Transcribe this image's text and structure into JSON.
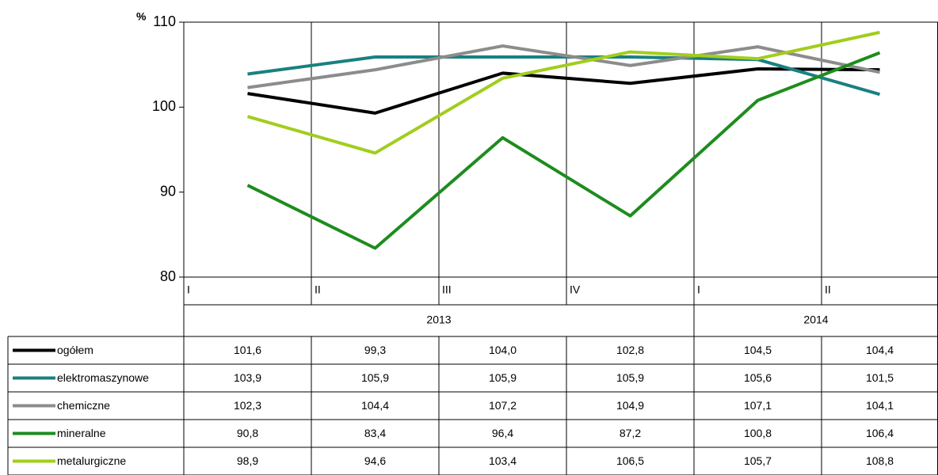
{
  "chart_data": {
    "type": "line",
    "y_axis_label": "%",
    "categories": [
      "I",
      "II",
      "III",
      "IV",
      "I",
      "II"
    ],
    "x_groups": [
      {
        "label": "2013",
        "count": 4
      },
      {
        "label": "2014",
        "count": 2
      }
    ],
    "ylim": [
      80,
      110
    ],
    "yticks": [
      80,
      90,
      100,
      110
    ],
    "series": [
      {
        "name": "ogółem",
        "color": "#000000",
        "values": [
          101.6,
          99.3,
          104.0,
          102.8,
          104.5,
          104.4
        ],
        "value_labels": [
          "101,6",
          "99,3",
          "104,0",
          "102,8",
          "104,5",
          "104,4"
        ]
      },
      {
        "name": "elektromaszynowe",
        "color": "#1a8080",
        "values": [
          103.9,
          105.9,
          105.9,
          105.9,
          105.6,
          101.5
        ],
        "value_labels": [
          "103,9",
          "105,9",
          "105,9",
          "105,9",
          "105,6",
          "101,5"
        ]
      },
      {
        "name": "chemiczne",
        "color": "#8c8c8c",
        "values": [
          102.3,
          104.4,
          107.2,
          104.9,
          107.1,
          104.1
        ],
        "value_labels": [
          "102,3",
          "104,4",
          "107,2",
          "104,9",
          "107,1",
          "104,1"
        ]
      },
      {
        "name": "mineralne",
        "color": "#1e8c1e",
        "values": [
          90.8,
          83.4,
          96.4,
          87.2,
          100.8,
          106.4
        ],
        "value_labels": [
          "90,8",
          "83,4",
          "96,4",
          "87,2",
          "100,8",
          "106,4"
        ]
      },
      {
        "name": "metalurgiczne",
        "color": "#a2cd1e",
        "values": [
          98.9,
          94.6,
          103.4,
          106.5,
          105.7,
          108.8
        ],
        "value_labels": [
          "98,9",
          "94,6",
          "103,4",
          "106,5",
          "105,7",
          "108,8"
        ]
      }
    ]
  }
}
